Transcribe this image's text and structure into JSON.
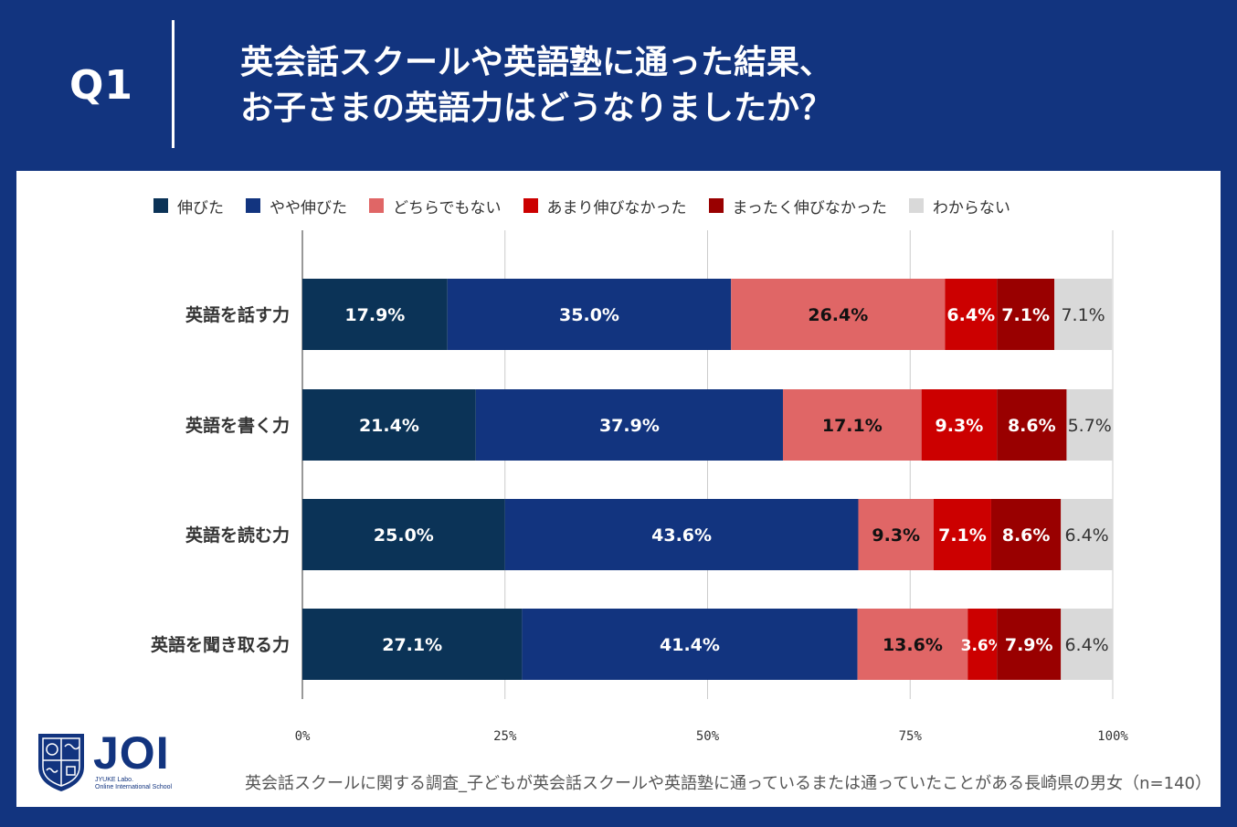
{
  "header": {
    "q_label": "Q1",
    "title_line1": "英会話スクールや英語塾に通った結果、",
    "title_line2": "お子さまの英語力はどうなりましたか？"
  },
  "colors": {
    "background": "#12347f",
    "series": [
      "#0b3357",
      "#12347f",
      "#e06666",
      "#cc0000",
      "#990000",
      "#d9d9d9"
    ],
    "label_text": [
      "#ffffff",
      "#ffffff",
      "#111111",
      "#ffffff",
      "#ffffff",
      "#333333"
    ]
  },
  "chart_data": {
    "type": "bar",
    "orientation": "horizontal",
    "stacked": true,
    "categories": [
      "英語を話す力",
      "英語を書く力",
      "英語を読む力",
      "英語を聞き取る力"
    ],
    "series": [
      {
        "name": "伸びた",
        "values": [
          17.9,
          21.4,
          25.0,
          27.1
        ]
      },
      {
        "name": "やや伸びた",
        "values": [
          35.0,
          37.9,
          43.6,
          41.4
        ]
      },
      {
        "name": "どちらでもない",
        "values": [
          26.4,
          17.1,
          9.3,
          13.6
        ]
      },
      {
        "name": "あまり伸びなかった",
        "values": [
          6.4,
          9.3,
          7.1,
          3.6
        ]
      },
      {
        "name": "まったく伸びなかった",
        "values": [
          7.1,
          8.6,
          8.6,
          7.9
        ]
      },
      {
        "name": "わからない",
        "values": [
          7.1,
          5.7,
          6.4,
          6.4
        ]
      }
    ],
    "xlim": [
      0,
      100
    ],
    "xticks": [
      "0%",
      "25%",
      "50%",
      "75%",
      "100%"
    ],
    "legend_position": "top",
    "unit": "%"
  },
  "logo": {
    "name": "JOI",
    "sub1": "JYUKE Labo.",
    "sub2": "Online International School"
  },
  "footnote": "英会話スクールに関する調査_子どもが英会話スクールや英語塾に通っているまたは通っていたことがある長崎県の男女（n=140）"
}
